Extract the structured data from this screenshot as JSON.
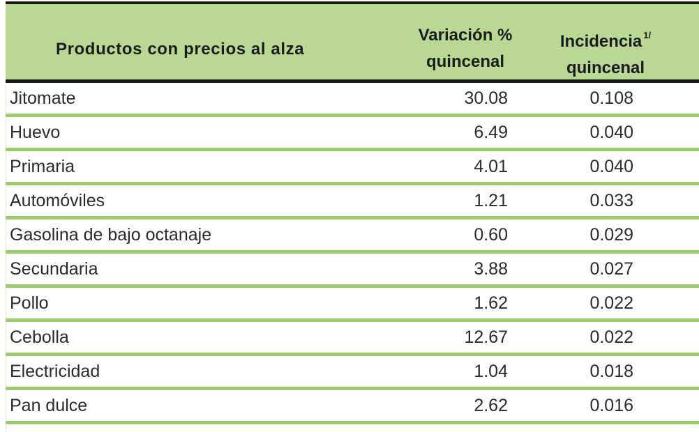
{
  "table": {
    "headers": {
      "product": "Productos con precios al alza",
      "variation_line1": "Variación %",
      "variation_line2": "quincenal",
      "incidence_line1": "Incidencia",
      "incidence_sup": "1/",
      "incidence_line2": "quincenal"
    },
    "rows": [
      {
        "product": "Jitomate",
        "variation": "30.08",
        "incidence": "0.108"
      },
      {
        "product": "Huevo",
        "variation": "6.49",
        "incidence": "0.040"
      },
      {
        "product": "Primaria",
        "variation": "4.01",
        "incidence": "0.040"
      },
      {
        "product": "Automóviles",
        "variation": "1.21",
        "incidence": "0.033"
      },
      {
        "product": "Gasolina de bajo octanaje",
        "variation": "0.60",
        "incidence": "0.029"
      },
      {
        "product": "Secundaria",
        "variation": "3.88",
        "incidence": "0.027"
      },
      {
        "product": "Pollo",
        "variation": "1.62",
        "incidence": "0.022"
      },
      {
        "product": "Cebolla",
        "variation": "12.67",
        "incidence": "0.022"
      },
      {
        "product": "Electricidad",
        "variation": "1.04",
        "incidence": "0.018"
      },
      {
        "product": "Pan dulce",
        "variation": "2.62",
        "incidence": "0.016"
      }
    ],
    "colors": {
      "header_bg": "#b8d893",
      "row_separator": "#9dcb6b",
      "rule": "#1a1a1a"
    }
  }
}
